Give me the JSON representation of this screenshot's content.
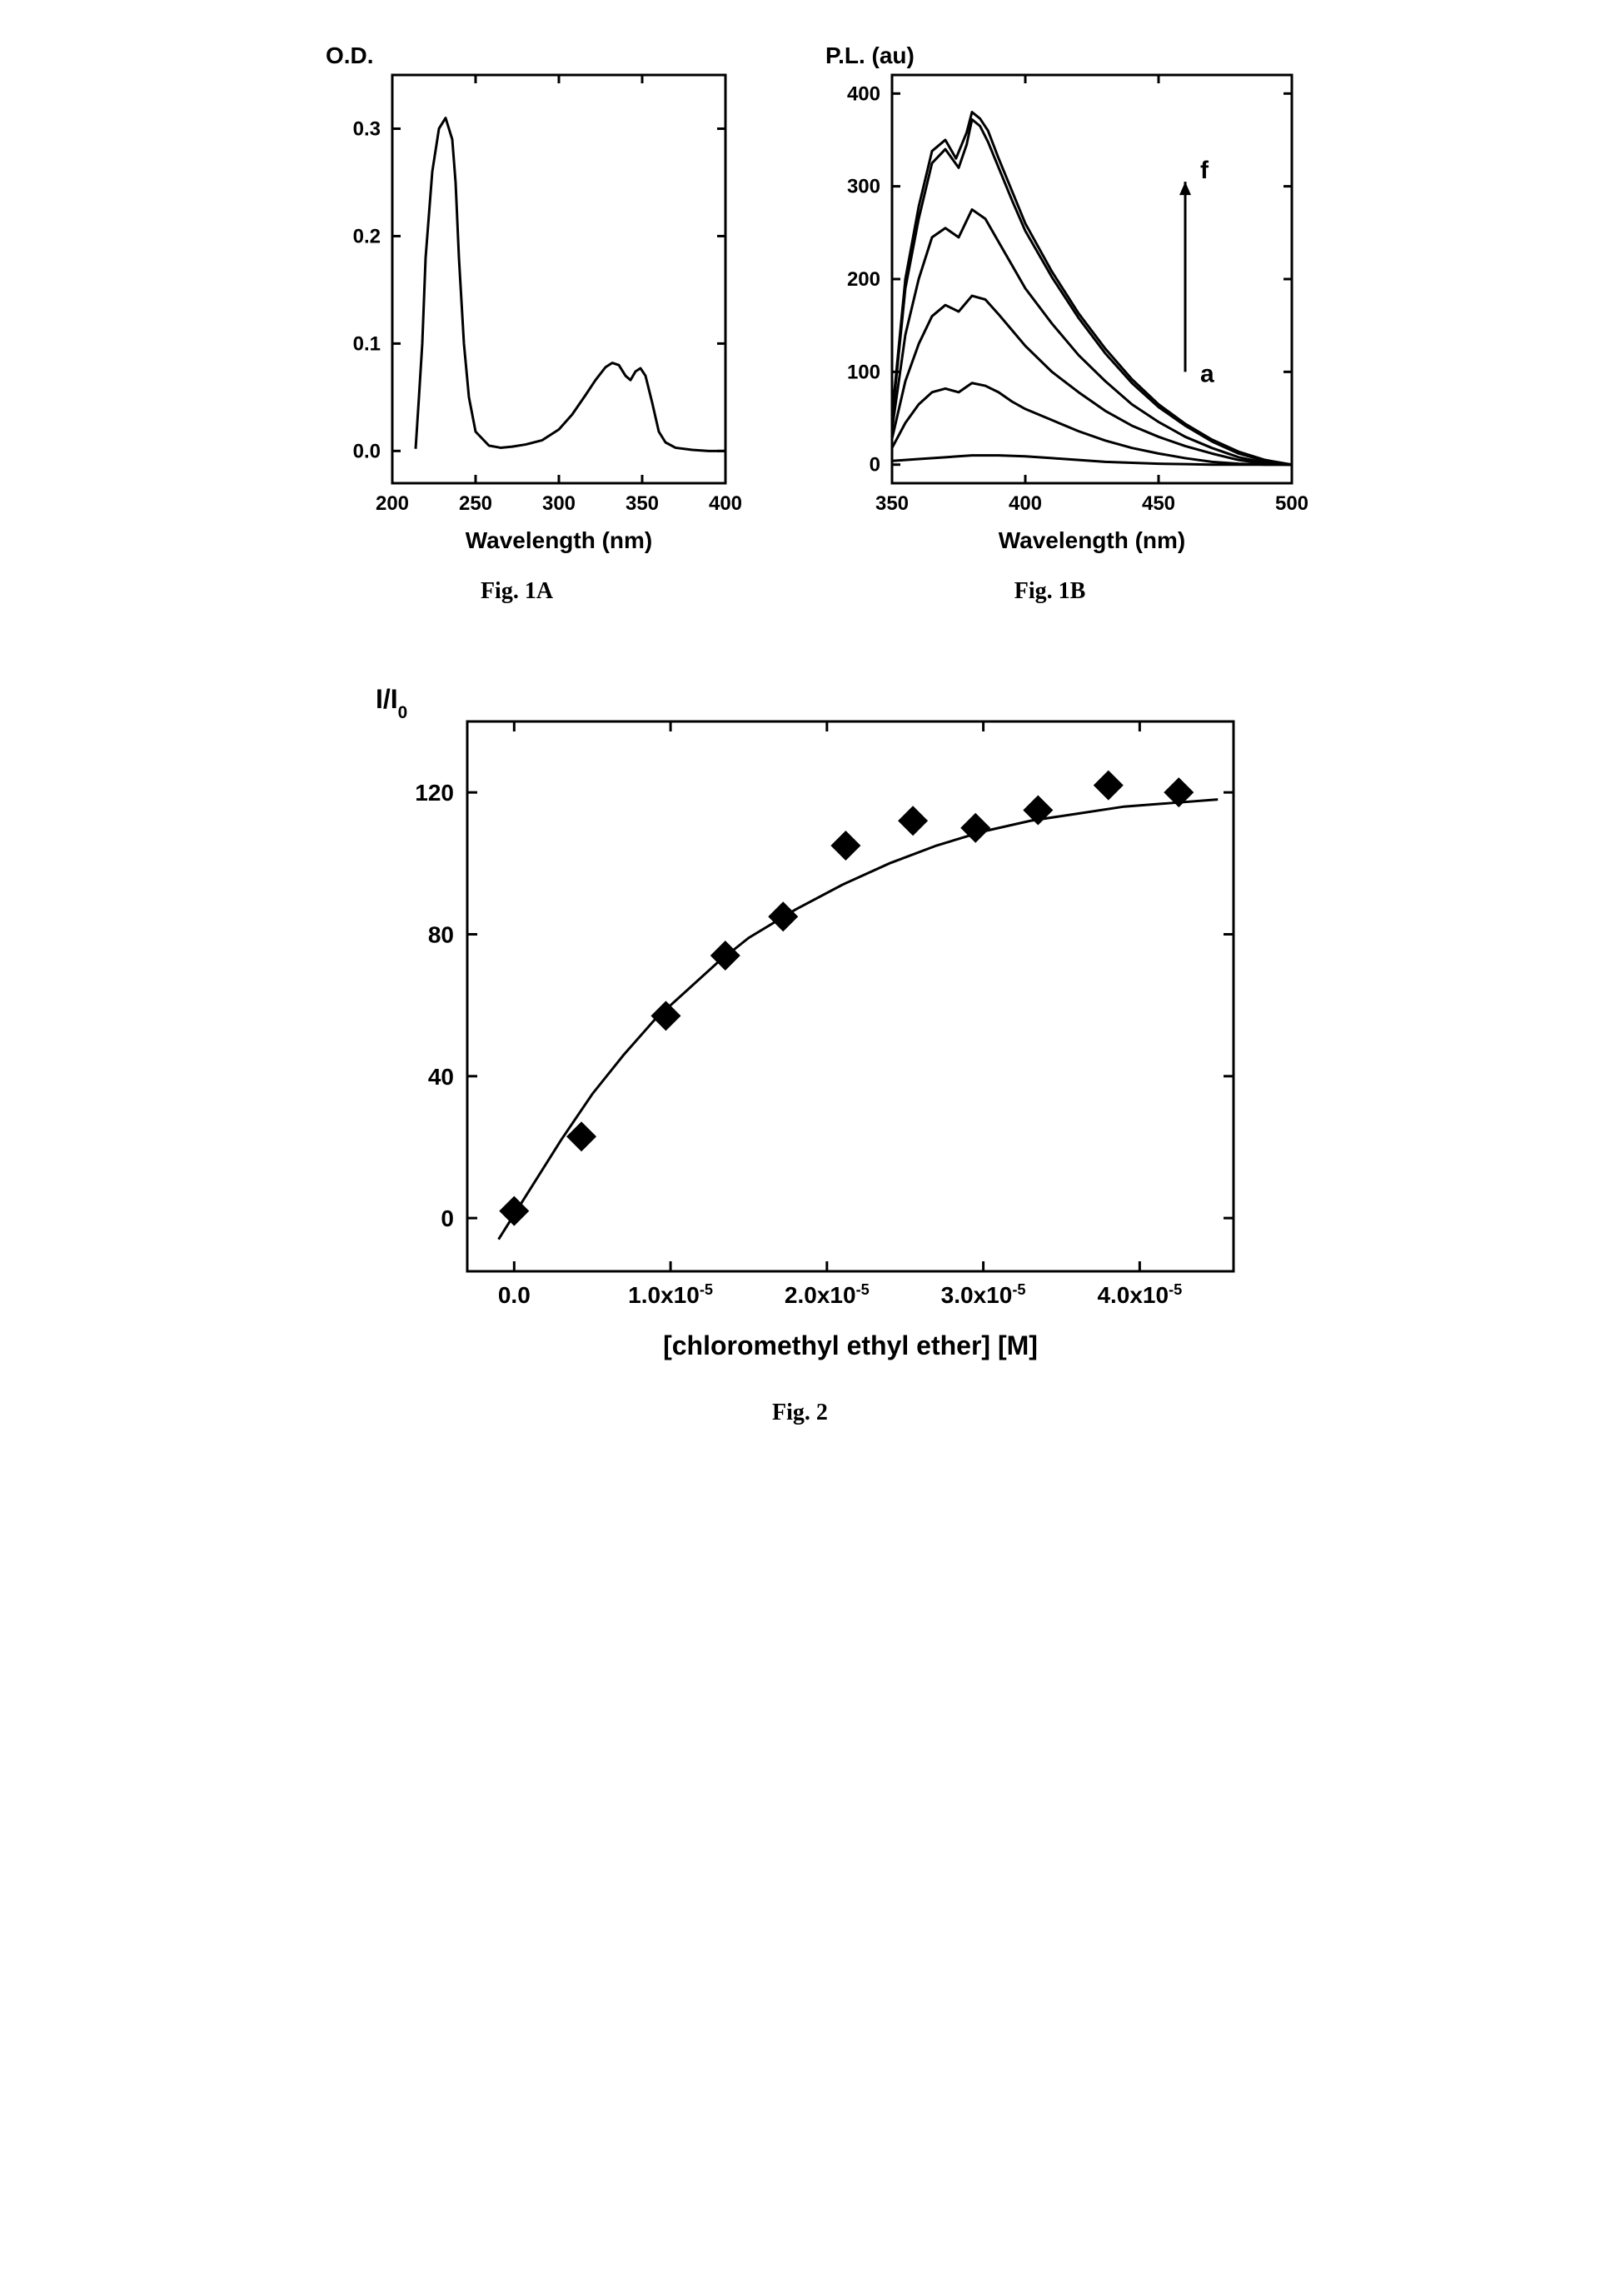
{
  "fig1A": {
    "type": "line",
    "caption": "Fig. 1A",
    "ylabel": "O.D.",
    "xlabel": "Wavelength (nm)",
    "xlim": [
      200,
      400
    ],
    "xticks": [
      200,
      250,
      300,
      350,
      400
    ],
    "ylim": [
      -0.03,
      0.35
    ],
    "yticks": [
      0.0,
      0.1,
      0.2,
      0.3
    ],
    "line_color": "#000000",
    "line_width": 3,
    "axis_color": "#000000",
    "axis_width": 3,
    "tick_len": 10,
    "background_color": "#ffffff",
    "label_fontsize": 28,
    "tick_fontsize": 24,
    "label_fontweight": "bold",
    "data": [
      [
        214,
        0.002
      ],
      [
        216,
        0.05
      ],
      [
        218,
        0.1
      ],
      [
        220,
        0.18
      ],
      [
        224,
        0.26
      ],
      [
        228,
        0.3
      ],
      [
        232,
        0.31
      ],
      [
        236,
        0.29
      ],
      [
        238,
        0.25
      ],
      [
        240,
        0.18
      ],
      [
        243,
        0.1
      ],
      [
        246,
        0.05
      ],
      [
        250,
        0.018
      ],
      [
        258,
        0.005
      ],
      [
        265,
        0.003
      ],
      [
        272,
        0.004
      ],
      [
        280,
        0.006
      ],
      [
        290,
        0.01
      ],
      [
        300,
        0.02
      ],
      [
        308,
        0.034
      ],
      [
        316,
        0.052
      ],
      [
        322,
        0.066
      ],
      [
        328,
        0.078
      ],
      [
        332,
        0.082
      ],
      [
        336,
        0.08
      ],
      [
        340,
        0.07
      ],
      [
        343,
        0.066
      ],
      [
        346,
        0.074
      ],
      [
        349,
        0.077
      ],
      [
        352,
        0.07
      ],
      [
        356,
        0.045
      ],
      [
        360,
        0.018
      ],
      [
        364,
        0.008
      ],
      [
        370,
        0.003
      ],
      [
        380,
        0.001
      ],
      [
        390,
        0.0
      ],
      [
        400,
        0.0
      ]
    ]
  },
  "fig1B": {
    "type": "line-multi",
    "caption": "Fig. 1B",
    "ylabel": "P.L. (au)",
    "xlabel": "Wavelength (nm)",
    "xlim": [
      350,
      500
    ],
    "xticks": [
      350,
      400,
      450,
      500
    ],
    "ylim": [
      -20,
      420
    ],
    "yticks": [
      0,
      100,
      200,
      300,
      400
    ],
    "line_color": "#000000",
    "line_width": 3,
    "axis_color": "#000000",
    "axis_width": 3,
    "tick_len": 10,
    "background_color": "#ffffff",
    "label_fontsize": 28,
    "tick_fontsize": 24,
    "label_fontweight": "bold",
    "annotation_top": "f",
    "annotation_bottom": "a",
    "annotation_fontsize": 30,
    "series": [
      [
        [
          350,
          4
        ],
        [
          360,
          6
        ],
        [
          370,
          8
        ],
        [
          380,
          10
        ],
        [
          390,
          10
        ],
        [
          400,
          9
        ],
        [
          410,
          7
        ],
        [
          420,
          5
        ],
        [
          430,
          3
        ],
        [
          440,
          2
        ],
        [
          450,
          1
        ],
        [
          460,
          0.5
        ],
        [
          470,
          0
        ],
        [
          480,
          0
        ],
        [
          490,
          0
        ],
        [
          500,
          0
        ]
      ],
      [
        [
          350,
          18
        ],
        [
          355,
          45
        ],
        [
          360,
          65
        ],
        [
          365,
          78
        ],
        [
          370,
          82
        ],
        [
          375,
          78
        ],
        [
          380,
          88
        ],
        [
          385,
          85
        ],
        [
          390,
          78
        ],
        [
          395,
          68
        ],
        [
          400,
          60
        ],
        [
          410,
          48
        ],
        [
          420,
          36
        ],
        [
          430,
          26
        ],
        [
          440,
          18
        ],
        [
          450,
          12
        ],
        [
          460,
          7
        ],
        [
          470,
          3
        ],
        [
          480,
          1
        ],
        [
          490,
          0
        ],
        [
          500,
          0
        ]
      ],
      [
        [
          350,
          28
        ],
        [
          355,
          90
        ],
        [
          360,
          130
        ],
        [
          365,
          160
        ],
        [
          370,
          172
        ],
        [
          375,
          165
        ],
        [
          380,
          182
        ],
        [
          385,
          178
        ],
        [
          390,
          162
        ],
        [
          395,
          145
        ],
        [
          400,
          128
        ],
        [
          410,
          100
        ],
        [
          420,
          78
        ],
        [
          430,
          58
        ],
        [
          440,
          42
        ],
        [
          450,
          30
        ],
        [
          460,
          20
        ],
        [
          470,
          12
        ],
        [
          480,
          5
        ],
        [
          490,
          1
        ],
        [
          500,
          0
        ]
      ],
      [
        [
          350,
          38
        ],
        [
          355,
          140
        ],
        [
          360,
          200
        ],
        [
          365,
          245
        ],
        [
          370,
          255
        ],
        [
          375,
          245
        ],
        [
          380,
          275
        ],
        [
          385,
          265
        ],
        [
          390,
          240
        ],
        [
          395,
          215
        ],
        [
          400,
          190
        ],
        [
          410,
          152
        ],
        [
          420,
          118
        ],
        [
          430,
          90
        ],
        [
          440,
          65
        ],
        [
          450,
          46
        ],
        [
          460,
          30
        ],
        [
          470,
          18
        ],
        [
          480,
          8
        ],
        [
          490,
          2
        ],
        [
          500,
          0
        ]
      ],
      [
        [
          350,
          48
        ],
        [
          355,
          190
        ],
        [
          360,
          265
        ],
        [
          365,
          325
        ],
        [
          370,
          340
        ],
        [
          375,
          320
        ],
        [
          378,
          345
        ],
        [
          380,
          372
        ],
        [
          383,
          365
        ],
        [
          386,
          348
        ],
        [
          390,
          320
        ],
        [
          395,
          285
        ],
        [
          400,
          252
        ],
        [
          410,
          202
        ],
        [
          420,
          158
        ],
        [
          430,
          120
        ],
        [
          440,
          88
        ],
        [
          450,
          62
        ],
        [
          460,
          42
        ],
        [
          470,
          25
        ],
        [
          480,
          12
        ],
        [
          490,
          4
        ],
        [
          500,
          0
        ]
      ],
      [
        [
          350,
          52
        ],
        [
          355,
          200
        ],
        [
          360,
          278
        ],
        [
          365,
          338
        ],
        [
          370,
          350
        ],
        [
          374,
          330
        ],
        [
          378,
          358
        ],
        [
          380,
          380
        ],
        [
          383,
          373
        ],
        [
          386,
          360
        ],
        [
          390,
          330
        ],
        [
          395,
          295
        ],
        [
          400,
          260
        ],
        [
          410,
          208
        ],
        [
          420,
          163
        ],
        [
          430,
          125
        ],
        [
          440,
          92
        ],
        [
          450,
          65
        ],
        [
          460,
          44
        ],
        [
          470,
          27
        ],
        [
          480,
          14
        ],
        [
          490,
          5
        ],
        [
          500,
          0
        ]
      ]
    ]
  },
  "fig2": {
    "type": "scatter-fit",
    "caption": "Fig. 2",
    "ylabel": "I/I",
    "ylabel_sub": "0",
    "xlabel": "[chloromethyl ethyl ether] [M]",
    "xlim": [
      -3e-06,
      4.6e-05
    ],
    "xticks": [
      0.0,
      1e-05,
      2e-05,
      3e-05,
      4e-05
    ],
    "xtick_labels": [
      "0.0",
      "1.0x10",
      "2.0x10",
      "3.0x10",
      "4.0x10"
    ],
    "xtick_exp": "-5",
    "ylim": [
      -15,
      140
    ],
    "yticks": [
      0,
      40,
      80,
      120
    ],
    "marker_color": "#000000",
    "marker_size": 18,
    "line_color": "#000000",
    "line_width": 3,
    "axis_color": "#000000",
    "axis_width": 3,
    "tick_len": 12,
    "background_color": "#ffffff",
    "label_fontsize": 32,
    "tick_fontsize": 28,
    "label_fontweight": "bold",
    "points": [
      [
        0.0,
        2
      ],
      [
        4.3e-06,
        23
      ],
      [
        9.7e-06,
        57
      ],
      [
        1.35e-05,
        74
      ],
      [
        1.72e-05,
        85
      ],
      [
        2.12e-05,
        105
      ],
      [
        2.55e-05,
        112
      ],
      [
        2.95e-05,
        110
      ],
      [
        3.35e-05,
        115
      ],
      [
        3.8e-05,
        122
      ],
      [
        4.25e-05,
        120
      ]
    ],
    "fit": [
      [
        -1e-06,
        -6
      ],
      [
        1e-06,
        8
      ],
      [
        3e-06,
        22
      ],
      [
        5e-06,
        35
      ],
      [
        7e-06,
        46
      ],
      [
        9e-06,
        56
      ],
      [
        1.1e-05,
        64
      ],
      [
        1.3e-05,
        72
      ],
      [
        1.5e-05,
        79
      ],
      [
        1.8e-05,
        87
      ],
      [
        2.1e-05,
        94
      ],
      [
        2.4e-05,
        100
      ],
      [
        2.7e-05,
        105
      ],
      [
        3e-05,
        109
      ],
      [
        3.3e-05,
        112
      ],
      [
        3.6e-05,
        114
      ],
      [
        3.9e-05,
        116
      ],
      [
        4.2e-05,
        117
      ],
      [
        4.5e-05,
        118
      ]
    ]
  }
}
